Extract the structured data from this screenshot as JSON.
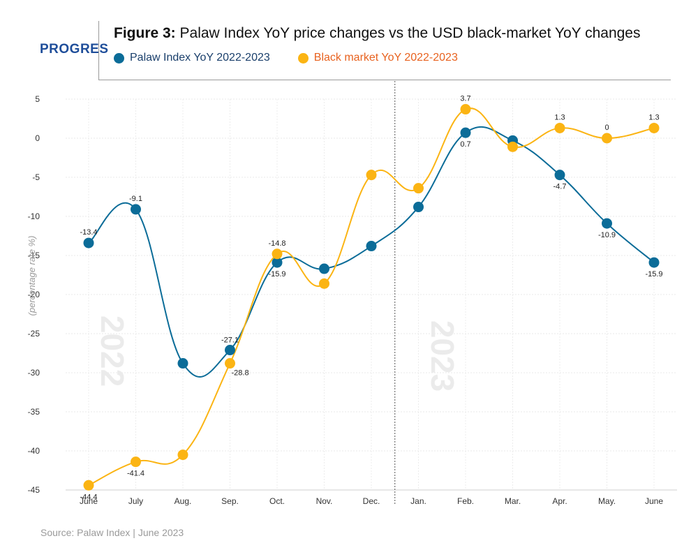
{
  "header": {
    "logo": "PROGRES",
    "title_bold": "Figure 3:",
    "title_rest": " Palaw Index YoY price changes vs the USD black-market YoY changes"
  },
  "source": "Source: Palaw Index  |  June 2023",
  "colors": {
    "blue": "#0b6c98",
    "orange": "#fbb413",
    "legend_text_blue": "#1a3f6b",
    "legend_text_orange": "#e8621f"
  },
  "chart_data": {
    "type": "line",
    "ylabel": "(percentage rate %)",
    "ylim": [
      -45,
      5
    ],
    "yticks": [
      "5",
      "0",
      "-5",
      "-10",
      "-15",
      "-20",
      "-25",
      "-30",
      "-35",
      "-40",
      "-45"
    ],
    "categories": [
      "June",
      "July",
      "Aug.",
      "Sep.",
      "Oct.",
      "Nov.",
      "Dec.",
      "Jan.",
      "Feb.",
      "Mar.",
      "Apr.",
      "May.",
      "June"
    ],
    "year_labels": [
      "2022",
      "2023"
    ],
    "divider_after_index": 6,
    "grid": true,
    "series": [
      {
        "name": "Palaw Index YoY 2022-2023",
        "color": "#0b6c98",
        "values": [
          -13.4,
          -9.1,
          -28.8,
          -27.1,
          -15.9,
          -16.7,
          -13.8,
          -8.8,
          0.7,
          -0.3,
          -4.7,
          -10.9,
          -15.9
        ],
        "labels": [
          "-13.4",
          "-9.1",
          "",
          "-27.1",
          "-15.9",
          "",
          "",
          "",
          "0.7",
          "",
          "-4.7",
          "-10.9",
          "-15.9"
        ]
      },
      {
        "name": "Black market YoY 2022-2023",
        "color": "#fbb413",
        "values": [
          -44.4,
          -41.4,
          -40.5,
          -28.8,
          -14.8,
          -18.6,
          -4.7,
          -6.4,
          3.7,
          -1.1,
          1.3,
          0,
          1.3
        ],
        "labels": [
          "-44.4",
          "-41.4",
          "",
          "-28.8",
          "-14.8",
          "",
          "",
          "",
          "3.7",
          "",
          "1.3",
          "0",
          "1.3"
        ]
      }
    ]
  }
}
